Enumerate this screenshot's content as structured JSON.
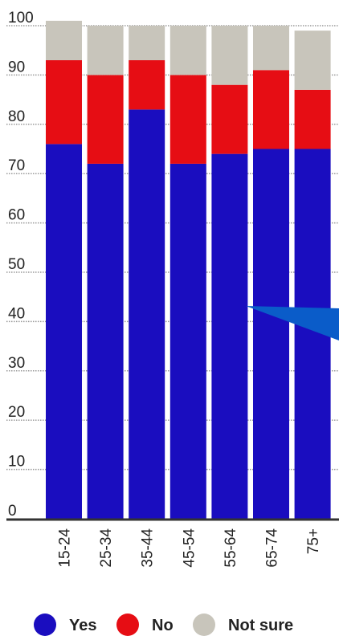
{
  "chart_data": {
    "type": "bar",
    "stacked": true,
    "categories": [
      "15-24",
      "25-34",
      "35-44",
      "45-54",
      "55-64",
      "65-74",
      "75+"
    ],
    "series": [
      {
        "name": "Yes",
        "color": "#1a0dbf",
        "values": [
          76,
          72,
          83,
          72,
          74,
          75,
          75
        ]
      },
      {
        "name": "No",
        "color": "#e60d14",
        "values": [
          17,
          18,
          10,
          18,
          14,
          16,
          12
        ]
      },
      {
        "name": "Not sure",
        "color": "#c8c5bb",
        "values": [
          8,
          10,
          7,
          10,
          12,
          9,
          12
        ]
      }
    ],
    "yticks": [
      "0",
      "10",
      "20",
      "30",
      "40",
      "50",
      "60",
      "70",
      "80",
      "90",
      "100"
    ],
    "ylim": [
      0,
      100
    ],
    "grid": true,
    "legend": "bottom",
    "annotation_color": "#0a5cc9"
  }
}
